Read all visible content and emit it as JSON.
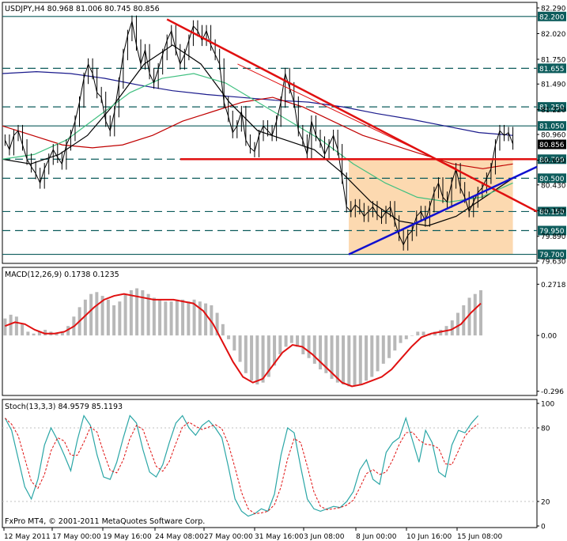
{
  "colors": {
    "background": "#ffffff",
    "axis_text": "#000000",
    "frame": "#000000",
    "price_line": "#000000",
    "level_line": "#0d5c5c",
    "level_label_bg": "#0d5c5c",
    "level_label_text": "#ffffff",
    "current_label_bg": "#000000",
    "current_label_text": "#ffffff",
    "trend_down": "#e01010",
    "trend_up": "#1010d0",
    "support_line": "#e01010",
    "triangle_fill": "#fcd9b0",
    "ma_blue": "#1a1a8c",
    "ma_red": "#c00000",
    "ma_black": "#000000",
    "ma_green": "#40c080",
    "macd_hist": "#b8b8b8",
    "macd_signal": "#e01010",
    "stoch_main": "#2aa6a6",
    "stoch_signal": "#e01010"
  },
  "chart_data": [
    {
      "type": "candlestick",
      "header_text": "USDJPY,H4  80.968 81.006 80.745 80.856",
      "symbol": "USDJPY",
      "timeframe": "H4",
      "ohlc_last": {
        "open": 80.968,
        "high": 81.006,
        "low": 80.745,
        "close": 80.856
      },
      "ylim": [
        79.63,
        82.29
      ],
      "y_ticks": [
        "82.290",
        "82.020",
        "81.750",
        "81.490",
        "81.220",
        "80.960",
        "80.690",
        "80.430",
        "80.160",
        "79.890",
        "79.630"
      ],
      "levels": [
        {
          "value": 82.2,
          "label": "82.200",
          "style": "solid"
        },
        {
          "value": 81.655,
          "label": "81.655",
          "style": "dashed"
        },
        {
          "value": 81.25,
          "label": "81.250",
          "style": "dashed"
        },
        {
          "value": 81.05,
          "label": "81.050",
          "style": "solid"
        },
        {
          "value": 80.7,
          "label": "80.700",
          "style": "dashed"
        },
        {
          "value": 80.5,
          "label": "80.500",
          "style": "dashed"
        },
        {
          "value": 80.15,
          "label": "80.150",
          "style": "dashed"
        },
        {
          "value": 79.95,
          "label": "79.950",
          "style": "dashed"
        },
        {
          "value": 79.7,
          "label": "79.700",
          "style": "solid"
        }
      ],
      "current_price_label": "80.856",
      "close_series": [
        80.9,
        80.8,
        80.95,
        81.0,
        80.85,
        80.7,
        80.62,
        80.55,
        80.45,
        80.6,
        80.7,
        80.8,
        80.72,
        80.65,
        80.85,
        80.95,
        81.1,
        81.3,
        81.55,
        81.7,
        81.6,
        81.4,
        81.35,
        81.1,
        81.0,
        81.2,
        81.5,
        81.8,
        82.0,
        82.15,
        81.9,
        81.7,
        81.85,
        81.6,
        81.5,
        81.65,
        81.8,
        81.95,
        82.05,
        81.85,
        81.7,
        81.8,
        81.95,
        82.1,
        82.05,
        81.95,
        82.05,
        81.9,
        81.8,
        81.7,
        81.3,
        81.15,
        80.98,
        81.05,
        81.2,
        80.9,
        80.82,
        80.78,
        80.95,
        81.05,
        81.0,
        80.95,
        81.1,
        81.3,
        81.6,
        81.45,
        81.3,
        81.0,
        80.9,
        80.75,
        81.1,
        80.95,
        80.88,
        80.75,
        80.85,
        80.95,
        80.8,
        80.5,
        80.2,
        80.15,
        80.22,
        80.18,
        80.1,
        80.15,
        80.2,
        80.12,
        80.08,
        80.15,
        80.2,
        80.05,
        79.9,
        79.8,
        79.9,
        79.95,
        80.1,
        80.15,
        80.05,
        80.2,
        80.35,
        80.45,
        80.3,
        80.25,
        80.45,
        80.6,
        80.4,
        80.3,
        80.15,
        80.25,
        80.35,
        80.4,
        80.5,
        80.6,
        80.85,
        81.0,
        80.95,
        80.98,
        80.86
      ],
      "moving_averages": [
        {
          "color_key": "ma_blue",
          "values": [
            81.6,
            81.62,
            81.6,
            81.55,
            81.48,
            81.42,
            81.38,
            81.35,
            81.32,
            81.3,
            81.25,
            81.18,
            81.12,
            81.05,
            80.98,
            80.95
          ]
        },
        {
          "color_key": "ma_red",
          "values": [
            81.05,
            80.95,
            80.85,
            80.82,
            80.85,
            80.95,
            81.1,
            81.2,
            81.3,
            81.35,
            81.25,
            81.1,
            80.95,
            80.85,
            80.75,
            80.65,
            80.6,
            80.65
          ]
        },
        {
          "color_key": "ma_black",
          "values": [
            80.7,
            80.65,
            80.75,
            80.95,
            81.3,
            81.7,
            81.9,
            81.7,
            81.3,
            81.0,
            80.9,
            80.8,
            80.55,
            80.25,
            80.05,
            80.0,
            80.1,
            80.3,
            80.5
          ]
        },
        {
          "color_key": "ma_green",
          "values": [
            80.7,
            80.75,
            80.9,
            81.15,
            81.4,
            81.55,
            81.6,
            81.5,
            81.3,
            81.1,
            80.9,
            80.65,
            80.45,
            80.3,
            80.25,
            80.3,
            80.45
          ]
        }
      ],
      "trendlines": [
        {
          "color_key": "trend_down",
          "from": {
            "t": 0.308,
            "price": 82.17
          },
          "to": {
            "t": 1.0,
            "price": 80.15
          }
        },
        {
          "color_key": "trend_down",
          "from": {
            "t": 0.44,
            "price": 81.7
          },
          "to": {
            "t": 0.85,
            "price": 80.6
          }
        },
        {
          "color_key": "trend_up",
          "from": {
            "t": 0.648,
            "price": 79.7
          },
          "to": {
            "t": 1.0,
            "price": 80.62
          }
        },
        {
          "color_key": "support_line",
          "from": {
            "t": 0.333,
            "price": 80.7
          },
          "to": {
            "t": 1.0,
            "price": 80.7
          }
        }
      ],
      "triangle_zone": {
        "t_start": 0.648,
        "t_end": 0.955,
        "price_top": 80.7,
        "price_bottom": 79.7
      }
    },
    {
      "type": "histogram",
      "header_text": "MACD(12,26,9) 0.1738 0.1235",
      "macd": 0.1738,
      "signal": 0.1235,
      "ylim": [
        -0.31,
        0.29
      ],
      "y_ticks": [
        "0.2718",
        "0.00",
        "-0.296"
      ],
      "histogram": [
        0.09,
        0.11,
        0.1,
        0.06,
        0.02,
        0.01,
        0.02,
        0.03,
        0.02,
        0.01,
        0.02,
        0.05,
        0.1,
        0.15,
        0.19,
        0.22,
        0.23,
        0.21,
        0.19,
        0.16,
        0.18,
        0.22,
        0.24,
        0.25,
        0.24,
        0.22,
        0.2,
        0.19,
        0.18,
        0.18,
        0.19,
        0.19,
        0.18,
        0.19,
        0.18,
        0.17,
        0.16,
        0.12,
        0.06,
        -0.02,
        -0.08,
        -0.14,
        -0.2,
        -0.24,
        -0.26,
        -0.25,
        -0.22,
        -0.16,
        -0.1,
        -0.06,
        -0.04,
        -0.06,
        -0.1,
        -0.12,
        -0.15,
        -0.18,
        -0.2,
        -0.23,
        -0.25,
        -0.26,
        -0.27,
        -0.27,
        -0.26,
        -0.24,
        -0.22,
        -0.19,
        -0.15,
        -0.12,
        -0.08,
        -0.04,
        -0.02,
        0.0,
        0.02,
        0.02,
        0.01,
        0.02,
        0.03,
        0.05,
        0.08,
        0.12,
        0.16,
        0.2,
        0.22,
        0.24
      ],
      "signal_line": [
        0.05,
        0.07,
        0.06,
        0.03,
        0.01,
        0.01,
        0.02,
        0.05,
        0.1,
        0.15,
        0.19,
        0.21,
        0.22,
        0.21,
        0.2,
        0.19,
        0.19,
        0.19,
        0.18,
        0.17,
        0.13,
        0.06,
        -0.04,
        -0.14,
        -0.22,
        -0.25,
        -0.23,
        -0.16,
        -0.09,
        -0.05,
        -0.06,
        -0.1,
        -0.15,
        -0.2,
        -0.25,
        -0.27,
        -0.26,
        -0.24,
        -0.22,
        -0.18,
        -0.12,
        -0.06,
        -0.01,
        0.01,
        0.02,
        0.03,
        0.06,
        0.12,
        0.17
      ]
    },
    {
      "type": "line",
      "header_text": "Stoch(13,3,3) 84.9579 85.1193",
      "main": 84.9579,
      "signal": 85.1193,
      "ylim": [
        0,
        100
      ],
      "y_ticks": [
        "100",
        "80",
        "20",
        "0"
      ],
      "main_series": [
        88,
        78,
        55,
        32,
        22,
        38,
        66,
        80,
        70,
        58,
        45,
        70,
        90,
        82,
        58,
        40,
        38,
        52,
        72,
        90,
        84,
        62,
        44,
        40,
        50,
        68,
        84,
        90,
        80,
        74,
        82,
        86,
        80,
        72,
        48,
        22,
        12,
        8,
        10,
        14,
        12,
        26,
        58,
        80,
        76,
        48,
        22,
        14,
        12,
        14,
        16,
        15,
        20,
        28,
        46,
        54,
        38,
        34,
        60,
        68,
        72,
        88,
        70,
        52,
        78,
        68,
        44,
        40,
        66,
        78,
        76,
        84,
        90
      ]
    }
  ],
  "x_axis": {
    "labels": [
      "12 May 2011",
      "17 May 00:00",
      "19 May 16:00",
      "24 May 08:00",
      "27 May 00:00",
      "31 May 16:00",
      "3 Jun 08:00",
      "8 Jun 00:00",
      "10 Jun 16:00",
      "15 Jun 08:00"
    ]
  },
  "footer": {
    "watermark": "FxPro MT4, © 2001-2011 MetaQuotes Software Corp."
  }
}
